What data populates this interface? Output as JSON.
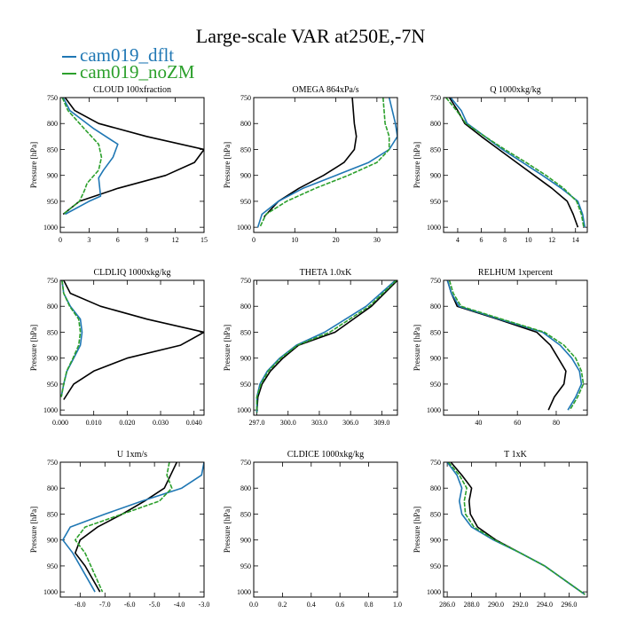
{
  "figure": {
    "title": "Large-scale VAR at250E,-7N",
    "legend": [
      {
        "name": "cam019_dflt",
        "color": "#1f77b4"
      },
      {
        "name": "cam019_noZM",
        "color": "#2ca02c"
      }
    ],
    "control_color": "#000000"
  },
  "chart_data": [
    {
      "type": "line",
      "title": "CLOUD 100xfraction",
      "ylabel": "Pressure [hPa]",
      "xlim": [
        0,
        15
      ],
      "ylim": [
        1010,
        750
      ],
      "xticks": [
        0,
        3,
        6,
        9,
        12,
        15
      ],
      "xticklabels": [
        "0",
        "3",
        "6",
        "9",
        "12",
        "15"
      ],
      "yticks": [
        750,
        800,
        850,
        900,
        950,
        1000
      ],
      "yticklabels": [
        "750",
        "800",
        "850",
        "900",
        "950",
        "1000"
      ],
      "series": [
        {
          "color": "#000000",
          "x": [
            0.5,
            1.5,
            4,
            9,
            15,
            14,
            11,
            6,
            2,
            0.3
          ],
          "y": [
            750,
            775,
            800,
            825,
            850,
            875,
            900,
            925,
            950,
            975
          ]
        },
        {
          "color": "#1f77b4",
          "x": [
            0.3,
            1,
            3.5,
            6,
            5.5,
            4.5,
            4,
            4.2,
            3,
            0.5
          ],
          "y": [
            750,
            775,
            810,
            840,
            865,
            890,
            905,
            940,
            950,
            975
          ]
        },
        {
          "color": "#2ca02c",
          "x": [
            0.2,
            0.8,
            2.5,
            4,
            4.3,
            4,
            2.8,
            2.5,
            2,
            0.3
          ],
          "y": [
            750,
            775,
            810,
            840,
            865,
            890,
            915,
            930,
            950,
            975
          ]
        }
      ]
    },
    {
      "type": "line",
      "title": "OMEGA 864xPa/s",
      "ylabel": "Pressure [hPa]",
      "xlim": [
        0,
        35
      ],
      "ylim": [
        1010,
        750
      ],
      "xticks": [
        0,
        10,
        20,
        30
      ],
      "xticklabels": [
        "0",
        "10",
        "20",
        "30"
      ],
      "yticks": [
        750,
        800,
        850,
        900,
        950,
        1000
      ],
      "yticklabels": [
        "750",
        "800",
        "850",
        "900",
        "950",
        "1000"
      ],
      "series": [
        {
          "color": "#000000",
          "x": [
            24,
            24.5,
            25,
            24.5,
            22,
            17,
            11,
            6,
            2.5
          ],
          "y": [
            750,
            800,
            825,
            850,
            875,
            900,
            925,
            950,
            980
          ]
        },
        {
          "color": "#1f77b4",
          "x": [
            33,
            34.5,
            35,
            33,
            28,
            20,
            12,
            6,
            2,
            1
          ],
          "y": [
            750,
            800,
            825,
            850,
            875,
            900,
            925,
            950,
            975,
            1000
          ]
        },
        {
          "color": "#2ca02c",
          "x": [
            31.5,
            32,
            33,
            33,
            30,
            23,
            15,
            8,
            3,
            1.5
          ],
          "y": [
            750,
            800,
            825,
            850,
            875,
            900,
            925,
            950,
            975,
            1000
          ]
        }
      ]
    },
    {
      "type": "line",
      "title": "Q 1000xkg/kg",
      "ylabel": "Pressure [hPa]",
      "xlim": [
        2.8,
        15
      ],
      "ylim": [
        1010,
        750
      ],
      "xticks": [
        4,
        6,
        8,
        10,
        12,
        14
      ],
      "xticklabels": [
        "4",
        "6",
        "8",
        "10",
        "12",
        "14"
      ],
      "yticks": [
        750,
        800,
        850,
        900,
        950,
        1000
      ],
      "yticklabels": [
        "750",
        "800",
        "850",
        "900",
        "950",
        "1000"
      ],
      "series": [
        {
          "color": "#000000",
          "x": [
            3.3,
            4,
            4.6,
            6,
            7.5,
            9,
            10.5,
            12,
            13.3,
            13.8,
            14.2
          ],
          "y": [
            750,
            775,
            800,
            825,
            850,
            875,
            900,
            925,
            950,
            975,
            1000
          ]
        },
        {
          "color": "#1f77b4",
          "x": [
            3.4,
            4.3,
            4.8,
            6.3,
            7.8,
            9.5,
            11.2,
            12.8,
            14.2,
            14.6,
            14.8
          ],
          "y": [
            750,
            775,
            800,
            825,
            850,
            875,
            900,
            925,
            950,
            975,
            1000
          ]
        },
        {
          "color": "#2ca02c",
          "x": [
            3,
            3.9,
            4.7,
            6.3,
            8,
            9.8,
            11.5,
            13,
            14.1,
            14.5,
            14.7
          ],
          "y": [
            750,
            775,
            800,
            825,
            850,
            875,
            900,
            925,
            950,
            975,
            1000
          ]
        }
      ]
    },
    {
      "type": "line",
      "title": "CLDLIQ 1000xkg/kg",
      "ylabel": "Pressure [hPa]",
      "xlim": [
        0,
        0.043
      ],
      "ylim": [
        1010,
        750
      ],
      "xticks": [
        0,
        0.01,
        0.02,
        0.03,
        0.04
      ],
      "xticklabels": [
        "0.000",
        "0.010",
        "0.020",
        "0.030",
        "0.040"
      ],
      "yticks": [
        750,
        800,
        850,
        900,
        950,
        1000
      ],
      "yticklabels": [
        "750",
        "800",
        "850",
        "900",
        "950",
        "1000"
      ],
      "series": [
        {
          "color": "#000000",
          "x": [
            0.001,
            0.003,
            0.012,
            0.026,
            0.043,
            0.036,
            0.02,
            0.01,
            0.004,
            0.001
          ],
          "y": [
            750,
            775,
            800,
            825,
            850,
            875,
            900,
            925,
            950,
            980
          ]
        },
        {
          "color": "#1f77b4",
          "x": [
            0.0005,
            0.001,
            0.003,
            0.006,
            0.0065,
            0.006,
            0.004,
            0.002,
            0.001,
            0.0003
          ],
          "y": [
            750,
            775,
            800,
            825,
            850,
            875,
            900,
            925,
            950,
            975
          ]
        },
        {
          "color": "#2ca02c",
          "x": [
            0.0005,
            0.001,
            0.0028,
            0.0055,
            0.006,
            0.0055,
            0.0038,
            0.0019,
            0.001,
            0.0003
          ],
          "y": [
            750,
            775,
            800,
            825,
            850,
            875,
            900,
            925,
            950,
            975
          ]
        }
      ]
    },
    {
      "type": "line",
      "title": "THETA 1.0xK",
      "ylabel": "Pressure [hPa]",
      "xlim": [
        296.7,
        310.5
      ],
      "ylim": [
        1010,
        750
      ],
      "xticks": [
        297,
        300,
        303,
        306,
        309
      ],
      "xticklabels": [
        "297.0",
        "300.0",
        "303.0",
        "306.0",
        "309.0"
      ],
      "yticks": [
        750,
        800,
        850,
        900,
        950,
        1000
      ],
      "yticklabels": [
        "750",
        "800",
        "850",
        "900",
        "950",
        "1000"
      ],
      "series": [
        {
          "color": "#000000",
          "x": [
            310.5,
            308,
            304.5,
            301,
            299.5,
            298.3,
            297.5,
            297.1,
            297
          ],
          "y": [
            750,
            800,
            850,
            875,
            900,
            925,
            950,
            975,
            1005
          ]
        },
        {
          "color": "#1f77b4",
          "x": [
            310.3,
            307.5,
            303.5,
            300.8,
            299.2,
            298,
            297.3,
            297,
            297
          ],
          "y": [
            750,
            800,
            850,
            875,
            900,
            925,
            950,
            975,
            1005
          ]
        },
        {
          "color": "#2ca02c",
          "x": [
            310.4,
            307.8,
            304,
            300.9,
            299.3,
            298.1,
            297.4,
            297,
            297
          ],
          "y": [
            750,
            800,
            850,
            875,
            900,
            925,
            950,
            975,
            1005
          ]
        }
      ]
    },
    {
      "type": "line",
      "title": "RELHUM 1xpercent",
      "ylabel": "Pressure [hPa]",
      "xlim": [
        22,
        96
      ],
      "ylim": [
        1010,
        750
      ],
      "xticks": [
        40,
        60,
        80
      ],
      "xticklabels": [
        "40",
        "60",
        "80"
      ],
      "yticks": [
        750,
        800,
        850,
        900,
        950,
        1000
      ],
      "yticklabels": [
        "750",
        "800",
        "850",
        "900",
        "950",
        "1000"
      ],
      "series": [
        {
          "color": "#000000",
          "x": [
            24,
            26,
            29,
            50,
            70,
            77,
            81,
            85,
            84,
            79,
            76
          ],
          "y": [
            750,
            775,
            800,
            825,
            850,
            875,
            900,
            925,
            950,
            975,
            1000
          ]
        },
        {
          "color": "#1f77b4",
          "x": [
            24,
            26,
            30,
            51,
            73,
            82,
            88,
            92,
            93,
            90,
            86
          ],
          "y": [
            750,
            775,
            800,
            825,
            850,
            875,
            900,
            925,
            950,
            975,
            1000
          ]
        },
        {
          "color": "#2ca02c",
          "x": [
            25,
            27,
            31,
            52,
            74,
            84,
            90,
            93,
            94,
            91,
            87
          ],
          "y": [
            750,
            775,
            800,
            825,
            850,
            875,
            900,
            925,
            950,
            975,
            1000
          ]
        }
      ]
    },
    {
      "type": "line",
      "title": "U 1xm/s",
      "ylabel": "Pressure [hPa]",
      "xlim": [
        -8.8,
        -3
      ],
      "ylim": [
        1010,
        750
      ],
      "xticks": [
        -8,
        -7,
        -6,
        -5,
        -4,
        -3
      ],
      "xticklabels": [
        "-8.0",
        "-7.0",
        "-6.0",
        "-5.0",
        "-4.0",
        "-3.0"
      ],
      "yticks": [
        750,
        800,
        850,
        900,
        950,
        1000
      ],
      "yticklabels": [
        "750",
        "800",
        "850",
        "900",
        "950",
        "1000"
      ],
      "series": [
        {
          "color": "#000000",
          "x": [
            -4.1,
            -4.6,
            -5.4,
            -6.3,
            -7.3,
            -8,
            -8.2,
            -7.8,
            -7.2
          ],
          "y": [
            750,
            800,
            825,
            850,
            875,
            900,
            925,
            950,
            1000
          ]
        },
        {
          "color": "#1f77b4",
          "x": [
            -3,
            -3.1,
            -3.9,
            -5.5,
            -7,
            -8.4,
            -8.7,
            -8.3,
            -7.4
          ],
          "y": [
            750,
            775,
            800,
            825,
            850,
            875,
            900,
            925,
            1000
          ]
        },
        {
          "color": "#2ca02c",
          "x": [
            -4.4,
            -4.5,
            -4.3,
            -4.8,
            -6.3,
            -7.8,
            -8.2,
            -7.8,
            -7.1
          ],
          "y": [
            750,
            775,
            800,
            825,
            850,
            875,
            900,
            925,
            1000
          ]
        }
      ]
    },
    {
      "type": "line",
      "title": "CLDICE 1000xkg/kg",
      "ylabel": "Pressure [hPa]",
      "xlim": [
        0,
        1
      ],
      "ylim": [
        1010,
        750
      ],
      "xticks": [
        0,
        0.2,
        0.4,
        0.6,
        0.8,
        1
      ],
      "xticklabels": [
        "0.0",
        "0.2",
        "0.4",
        "0.6",
        "0.8",
        "1.0"
      ],
      "yticks": [
        750,
        800,
        850,
        900,
        950,
        1000
      ],
      "yticklabels": [
        "750",
        "800",
        "850",
        "900",
        "950",
        "1000"
      ],
      "series": []
    },
    {
      "type": "line",
      "title": "T 1xK",
      "ylabel": "Pressure [hPa]",
      "xlim": [
        285.7,
        297.5
      ],
      "ylim": [
        1010,
        750
      ],
      "xticks": [
        286,
        288,
        290,
        292,
        294,
        296
      ],
      "xticklabels": [
        "286.0",
        "288.0",
        "290.0",
        "292.0",
        "294.0",
        "296.0"
      ],
      "yticks": [
        750,
        800,
        850,
        900,
        950,
        1000
      ],
      "yticklabels": [
        "750",
        "800",
        "850",
        "900",
        "950",
        "1000"
      ],
      "series": [
        {
          "color": "#000000",
          "x": [
            286.3,
            287.2,
            288,
            287.8,
            287.9,
            288.5,
            290,
            292,
            294,
            297.3
          ],
          "y": [
            750,
            775,
            800,
            825,
            850,
            875,
            900,
            925,
            950,
            1005
          ]
        },
        {
          "color": "#1f77b4",
          "x": [
            286,
            286.8,
            287.2,
            287,
            287.2,
            288,
            289.8,
            292,
            294,
            297.3
          ],
          "y": [
            750,
            775,
            800,
            825,
            850,
            875,
            900,
            925,
            950,
            1005
          ]
        },
        {
          "color": "#2ca02c",
          "x": [
            286.1,
            287,
            287.6,
            287.4,
            287.5,
            288.2,
            289.9,
            292,
            294,
            297.3
          ],
          "y": [
            750,
            775,
            800,
            825,
            850,
            875,
            900,
            925,
            950,
            1005
          ]
        }
      ]
    }
  ]
}
